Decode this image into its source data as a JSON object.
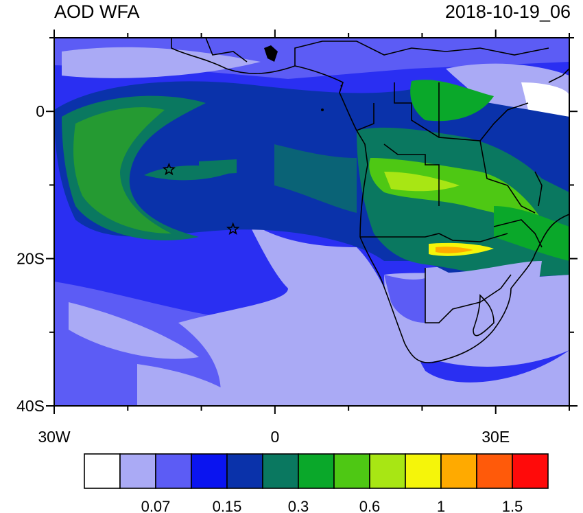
{
  "title_left": "AOD WFA",
  "title_right": "2018-10-19_06",
  "map": {
    "lon_range": [
      -30,
      40
    ],
    "lat_range": [
      -40,
      10
    ],
    "x_ticks": [
      {
        "value": -30,
        "label": "30W"
      },
      {
        "value": 0,
        "label": "0"
      },
      {
        "value": 30,
        "label": "30E"
      }
    ],
    "x_minor_ticks": [
      -20,
      -10,
      10,
      20,
      40
    ],
    "y_ticks": [
      {
        "value": 0,
        "label": "0"
      },
      {
        "value": -20,
        "label": "20S"
      },
      {
        "value": -40,
        "label": "40S"
      }
    ],
    "y_minor_ticks": [
      10,
      -10,
      -30
    ],
    "stations": [
      {
        "lon": -14.4,
        "lat": -7.9
      },
      {
        "lon": -5.7,
        "lat": -16.0
      }
    ]
  },
  "colorbar": {
    "colors": [
      "#ffffff",
      "#aaaaf5",
      "#5c5cf5",
      "#0a14f0",
      "#0a32aa",
      "#0a7860",
      "#0aa82a",
      "#4ec814",
      "#a8e614",
      "#f5f50a",
      "#ffaa00",
      "#ff5a0a",
      "#ff0a0a"
    ],
    "labels": [
      {
        "boundary": 2,
        "text": "0.07"
      },
      {
        "boundary": 4,
        "text": "0.15"
      },
      {
        "boundary": 6,
        "text": "0.3"
      },
      {
        "boundary": 8,
        "text": "0.6"
      },
      {
        "boundary": 10,
        "text": "1"
      },
      {
        "boundary": 12,
        "text": "1.5"
      }
    ]
  }
}
